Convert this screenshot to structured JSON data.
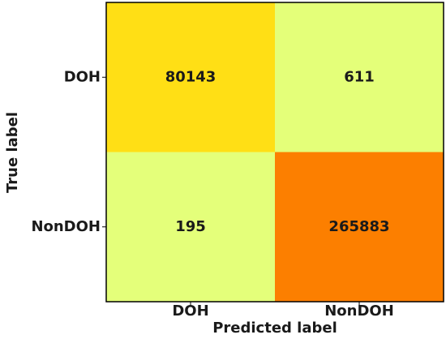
{
  "chart_data": {
    "type": "heatmap",
    "x_label": "Predicted label",
    "y_label": "True label",
    "x_categories": [
      "DOH",
      "NonDOH"
    ],
    "y_categories": [
      "DOH",
      "NonDOH"
    ],
    "values": [
      [
        80143,
        611
      ],
      [
        195,
        265883
      ]
    ],
    "colormap": [
      "#e4ff7a",
      "#ffe81a",
      "#ffbd00",
      "#ffa000",
      "#fc7f00"
    ]
  }
}
